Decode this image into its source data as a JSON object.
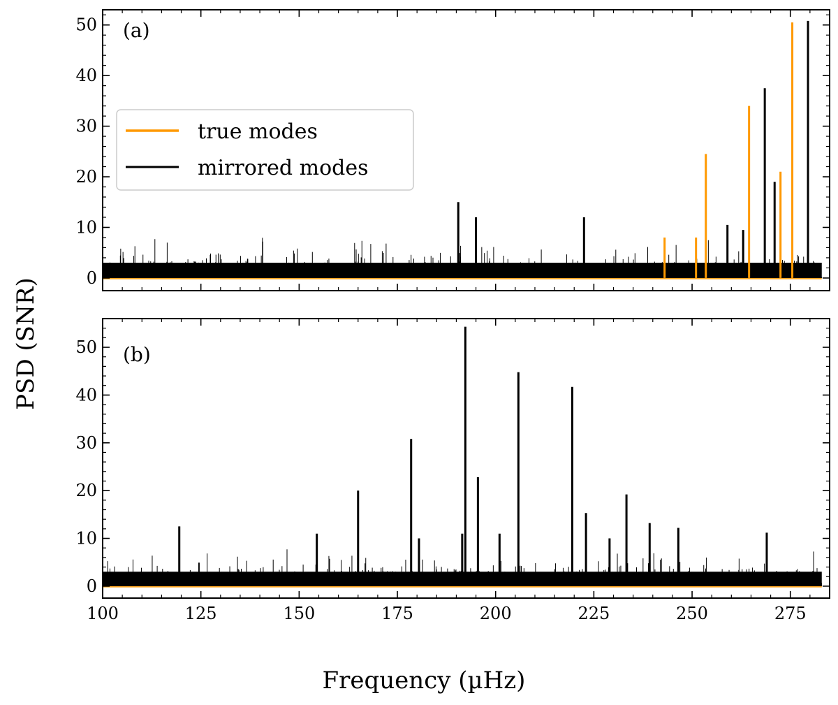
{
  "chart_data": {
    "type": "line",
    "xlabel": "Frequency (µHz)",
    "ylabel": "PSD (SNR)",
    "xlim": [
      100,
      285
    ],
    "shared_x_ticks": [
      100,
      125,
      150,
      175,
      200,
      225,
      250,
      275
    ],
    "x_tick_labels": [
      "100",
      "125",
      "150",
      "175",
      "200",
      "225",
      "250",
      "275"
    ],
    "series_colors": {
      "true_modes": "#FF9900",
      "mirrored_modes": "#000000"
    },
    "legend": {
      "placement": "upper-left of panel (a)",
      "entries": [
        {
          "name": "true modes",
          "color": "#FF9900"
        },
        {
          "name": "mirrored modes",
          "color": "#000000"
        }
      ]
    },
    "panels": [
      {
        "label": "(a)",
        "ylim": [
          -2.5,
          53
        ],
        "y_ticks": [
          0,
          10,
          20,
          30,
          40,
          50
        ],
        "y_tick_labels": [
          "0",
          "10",
          "20",
          "30",
          "40",
          "50"
        ],
        "noise_level": 5.5,
        "noise_range": [
          100,
          283
        ],
        "true_modes": [
          {
            "x": 243.0,
            "y": 8
          },
          {
            "x": 251.0,
            "y": 8
          },
          {
            "x": 253.5,
            "y": 24.5
          },
          {
            "x": 264.5,
            "y": 34
          },
          {
            "x": 272.5,
            "y": 21
          },
          {
            "x": 275.5,
            "y": 50.5
          }
        ],
        "mirrored_modes": [
          {
            "x": 190.5,
            "y": 15
          },
          {
            "x": 195.0,
            "y": 12
          },
          {
            "x": 222.5,
            "y": 12
          },
          {
            "x": 259.0,
            "y": 10.5
          },
          {
            "x": 263.0,
            "y": 9.5
          },
          {
            "x": 268.5,
            "y": 37.5
          },
          {
            "x": 271.0,
            "y": 19
          },
          {
            "x": 279.5,
            "y": 50.8
          }
        ]
      },
      {
        "label": "(b)",
        "ylim": [
          -2.5,
          56
        ],
        "y_ticks": [
          0,
          10,
          20,
          30,
          40,
          50
        ],
        "y_tick_labels": [
          "0",
          "10",
          "20",
          "30",
          "40",
          "50"
        ],
        "noise_level": 5.5,
        "noise_range": [
          100,
          283
        ],
        "true_modes": [],
        "mirrored_modes": [
          {
            "x": 119.5,
            "y": 12.5
          },
          {
            "x": 154.5,
            "y": 11
          },
          {
            "x": 165.0,
            "y": 20
          },
          {
            "x": 178.5,
            "y": 30.8
          },
          {
            "x": 180.5,
            "y": 10
          },
          {
            "x": 191.5,
            "y": 11
          },
          {
            "x": 192.3,
            "y": 54.3
          },
          {
            "x": 195.5,
            "y": 22.8
          },
          {
            "x": 201.0,
            "y": 11
          },
          {
            "x": 205.8,
            "y": 44.8
          },
          {
            "x": 219.5,
            "y": 41.7
          },
          {
            "x": 223.0,
            "y": 15.3
          },
          {
            "x": 229.0,
            "y": 10
          },
          {
            "x": 233.3,
            "y": 19.2
          },
          {
            "x": 239.2,
            "y": 13.2
          },
          {
            "x": 246.5,
            "y": 12.2
          },
          {
            "x": 269.0,
            "y": 11.2
          }
        ]
      }
    ]
  }
}
